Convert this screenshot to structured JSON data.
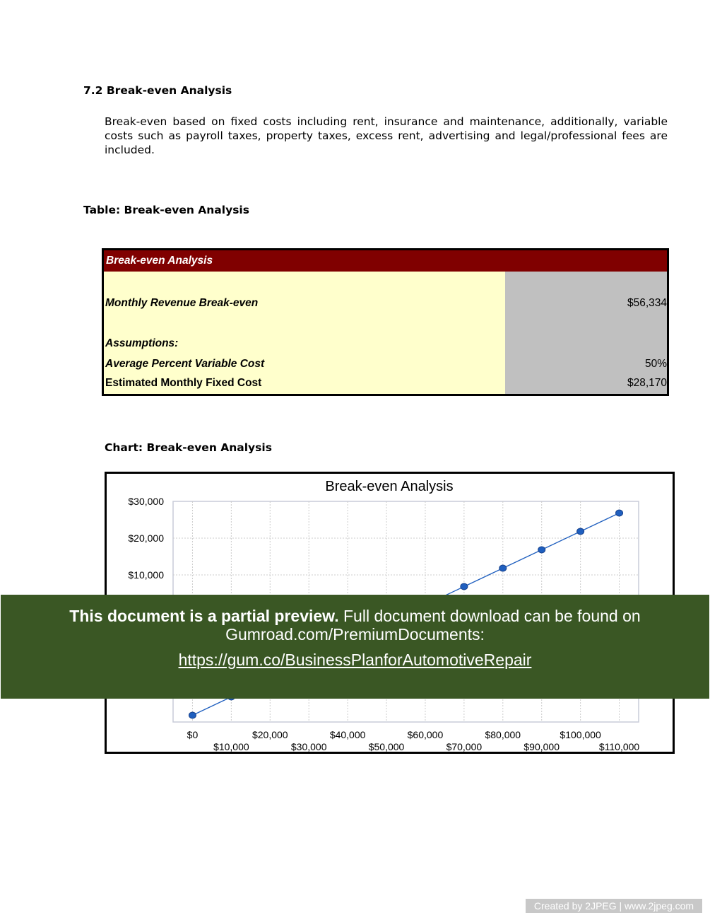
{
  "section_title": "7.2 Break-even Analysis",
  "paragraph": "Break-even based on fixed costs including rent, insurance and maintenance, additionally, variable costs such as payroll taxes, property taxes, excess rent, advertising and legal/professional fees are included.",
  "table_caption": "Table: Break-even Analysis",
  "table": {
    "header": "Break-even Analysis",
    "rows": [
      {
        "label": "Monthly Revenue Break-even",
        "value": "$56,334"
      },
      {
        "label": "Assumptions:",
        "value": ""
      },
      {
        "label": "Average Percent Variable Cost",
        "value": "50%"
      },
      {
        "label": "Estimated Monthly Fixed Cost",
        "value": "$28,170"
      }
    ]
  },
  "chart_caption": "Chart: Break-even Analysis",
  "chart_data": {
    "type": "line",
    "title": "Break-even Analysis",
    "x": [
      0,
      10000,
      20000,
      30000,
      40000,
      50000,
      60000,
      70000,
      80000,
      90000,
      100000,
      110000
    ],
    "values": [
      -28170,
      -23170,
      -18170,
      -13170,
      -8170,
      -3170,
      1830,
      6830,
      11830,
      16830,
      21830,
      26830
    ],
    "x_tick_labels": [
      "$0",
      "$10,000",
      "$20,000",
      "$30,000",
      "$40,000",
      "$50,000",
      "$60,000",
      "$70,000",
      "$80,000",
      "$90,000",
      "$100,000",
      "$110,000"
    ],
    "y_ticks": [
      30000,
      20000,
      10000
    ],
    "y_tick_labels": [
      "$30,000",
      "$20,000",
      "$10,000"
    ],
    "xlim": [
      -5000,
      115000
    ],
    "ylim": [
      -30000,
      30000
    ],
    "grid": true,
    "line_color": "#1f5fbf",
    "marker_color": "#1f5fbf"
  },
  "banner": {
    "bold": "This document is a partial preview.",
    "text": " Full document download can be found on Gumroad.com/PremiumDocuments:",
    "link": "https://gum.co/BusinessPlanforAutomotiveRepair",
    "color": "#3a5724"
  },
  "watermark": "Created by 2JPEG | www.2jpeg.com"
}
